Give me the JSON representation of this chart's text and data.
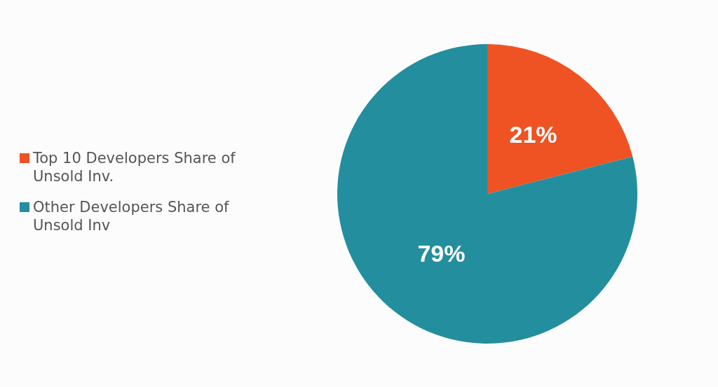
{
  "chart_data": {
    "type": "pie",
    "categories": [
      "Top 10 Developers Share of Unsold Inv.",
      "Other Developers Share of Unsold Inv"
    ],
    "values": [
      21,
      79
    ],
    "colors": [
      "#ef5223",
      "#238e9e"
    ],
    "value_labels": [
      "21%",
      "79%"
    ],
    "legend": "left"
  }
}
